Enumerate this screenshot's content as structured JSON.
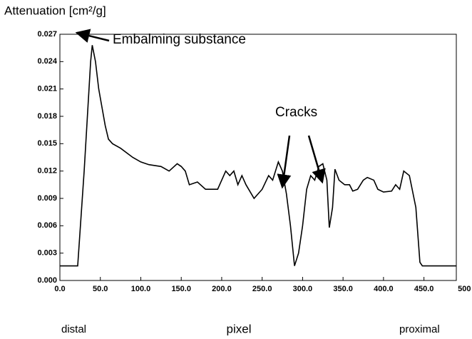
{
  "chart_data": {
    "type": "line",
    "title": "Attenuation [cm²/g]",
    "xlabel": "pixel",
    "annotations": [
      "Embalming substance",
      "Cracks",
      "distal",
      "proximal"
    ],
    "x": [
      0,
      22,
      30,
      38,
      40,
      44,
      48,
      52,
      56,
      60,
      65,
      75,
      90,
      100,
      110,
      125,
      135,
      145,
      150,
      155,
      160,
      170,
      180,
      195,
      205,
      210,
      215,
      220,
      225,
      230,
      240,
      250,
      258,
      263,
      270,
      275,
      280,
      285,
      290,
      295,
      300,
      305,
      310,
      315,
      320,
      325,
      330,
      333,
      337,
      340,
      345,
      352,
      358,
      362,
      368,
      375,
      380,
      388,
      393,
      400,
      410,
      415,
      420,
      425,
      432,
      440,
      445,
      448,
      490
    ],
    "series": [
      {
        "name": "attenuation",
        "color": "#000000",
        "values": [
          0.0016,
          0.0016,
          0.012,
          0.024,
          0.0258,
          0.024,
          0.021,
          0.019,
          0.017,
          0.0155,
          0.015,
          0.0145,
          0.0135,
          0.013,
          0.0127,
          0.0125,
          0.012,
          0.0128,
          0.0125,
          0.012,
          0.0105,
          0.0108,
          0.01,
          0.01,
          0.012,
          0.0115,
          0.012,
          0.0105,
          0.0115,
          0.0105,
          0.009,
          0.01,
          0.0115,
          0.011,
          0.013,
          0.012,
          0.0095,
          0.006,
          0.0016,
          0.003,
          0.006,
          0.01,
          0.0115,
          0.011,
          0.0125,
          0.0128,
          0.011,
          0.0058,
          0.008,
          0.0122,
          0.011,
          0.0105,
          0.0105,
          0.0098,
          0.01,
          0.011,
          0.0113,
          0.011,
          0.01,
          0.0097,
          0.0098,
          0.0105,
          0.01,
          0.012,
          0.0115,
          0.008,
          0.002,
          0.0016,
          0.0016
        ]
      }
    ],
    "xlim": [
      0,
      490
    ],
    "xticks": [
      {
        "value": 0,
        "label": "0.0"
      },
      {
        "value": 50,
        "label": "50.0"
      },
      {
        "value": 100,
        "label": "100.0"
      },
      {
        "value": 150,
        "label": "150.0"
      },
      {
        "value": 200,
        "label": "200.0"
      },
      {
        "value": 250,
        "label": "250.0"
      },
      {
        "value": 300,
        "label": "300.0"
      },
      {
        "value": 350,
        "label": "350.0"
      },
      {
        "value": 400,
        "label": "400.0"
      },
      {
        "value": 450,
        "label": "450.0"
      },
      500
    ],
    "ylim": [
      0,
      0.027
    ],
    "yticks": [
      {
        "value": 0,
        "label": "0.000"
      },
      0.003,
      0.006,
      0.009,
      0.012,
      0.015,
      0.018,
      0.021,
      0.024,
      0.027
    ],
    "grid": false
  }
}
